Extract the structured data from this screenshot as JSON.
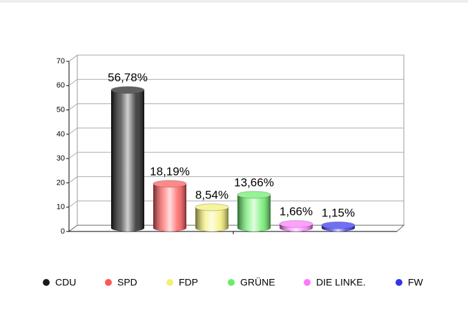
{
  "chart_data": {
    "type": "bar",
    "categories": [
      "CDU",
      "SPD",
      "FDP",
      "GRÜNE",
      "DIE LINKE.",
      "FW"
    ],
    "values": [
      56.78,
      18.19,
      8.54,
      13.66,
      1.66,
      1.15
    ],
    "value_labels": [
      "56,78%",
      "18,19%",
      "8,54%",
      "13,66%",
      "1,66%",
      "1,15%"
    ],
    "colors": [
      "#1a1a1a",
      "#ff5555",
      "#f4f070",
      "#66ee66",
      "#ff77ff",
      "#3333ee"
    ],
    "ylim": [
      0,
      70
    ],
    "yticks": [
      0,
      10,
      20,
      30,
      40,
      50,
      60,
      70
    ],
    "grid": true,
    "legend": "bottom"
  }
}
